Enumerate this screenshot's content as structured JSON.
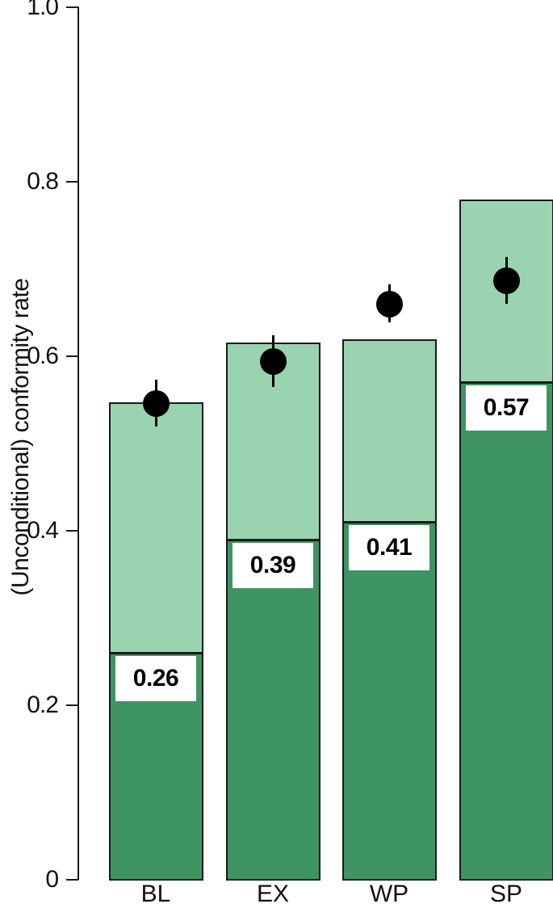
{
  "chart_data": {
    "type": "bar",
    "title": "",
    "xlabel": "",
    "ylabel": "(Unconditional) conformity rate",
    "ylim": [
      0,
      1.0
    ],
    "yticks": [
      0,
      0.2,
      0.4,
      0.6,
      0.8,
      1.0
    ],
    "ytick_labels": [
      "0",
      "0.2",
      "0.4",
      "0.6",
      "0.8",
      "1.0"
    ],
    "grid": false,
    "legend": "none",
    "categories": [
      "BL",
      "EX",
      "WP",
      "SP"
    ],
    "series": [
      {
        "name": "dark-green-bottom-segment",
        "values": [
          0.26,
          0.39,
          0.41,
          0.57
        ]
      },
      {
        "name": "bar-total-height-light-green-top",
        "values": [
          0.547,
          0.616,
          0.619,
          0.78
        ]
      }
    ],
    "bar_value_labels": [
      "0.26",
      "0.39",
      "0.41",
      "0.57"
    ],
    "point_estimates": {
      "name": "point-estimate-with-error-bar",
      "values": [
        0.546,
        0.594,
        0.66,
        0.687
      ],
      "error_low": [
        0.519,
        0.565,
        0.639,
        0.66
      ],
      "error_high": [
        0.573,
        0.624,
        0.682,
        0.714
      ]
    },
    "colors": {
      "bar_bottom": "#3E9463",
      "bar_top": "#9AD3B0",
      "bar_border": "#1A1A1A",
      "point": "#000000",
      "label_box_bg": "#FFFFFF",
      "text": "#111111"
    }
  }
}
